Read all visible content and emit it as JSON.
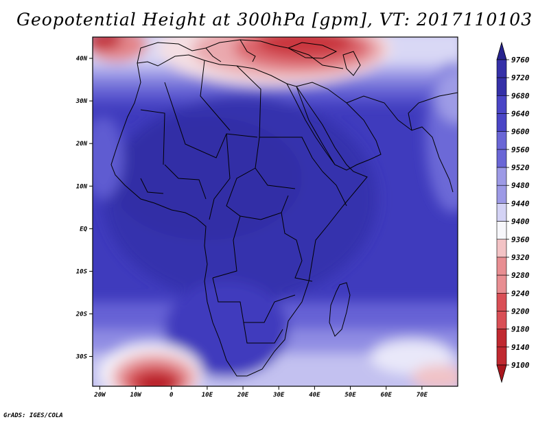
{
  "title": "Geopotential Height at 300hPa [gpm], VT: 2017110103",
  "credit": "GrADS: IGES/COLA",
  "map": {
    "lat_labels": [
      "40N",
      "30N",
      "20N",
      "10N",
      "EQ",
      "10S",
      "20S",
      "30S"
    ],
    "lon_labels": [
      "20W",
      "10W",
      "0",
      "10E",
      "20E",
      "30E",
      "40E",
      "50E",
      "60E",
      "70E"
    ],
    "lat_range": [
      -37,
      45
    ],
    "lon_range": [
      -22,
      80
    ]
  },
  "colorbar": {
    "levels": [
      "9760",
      "9720",
      "9680",
      "9640",
      "9600",
      "9560",
      "9520",
      "9480",
      "9440",
      "9400",
      "9360",
      "9320",
      "9280",
      "9240",
      "9200",
      "9180",
      "9140",
      "9100"
    ],
    "colors": {
      "top_arrow": "#27238e",
      "dark_blue": "#3530a8",
      "blue": "#4a45c6",
      "mid_blue": "#6a66d6",
      "light_blue": "#9d9ae6",
      "pale_blue": "#d4d3f5",
      "white": "#f7f7fb",
      "pale_red": "#f3c3c5",
      "light_red": "#e88e92",
      "red": "#d94f56",
      "dark_red": "#c02930",
      "bottom_arrow": "#a9161d"
    }
  }
}
